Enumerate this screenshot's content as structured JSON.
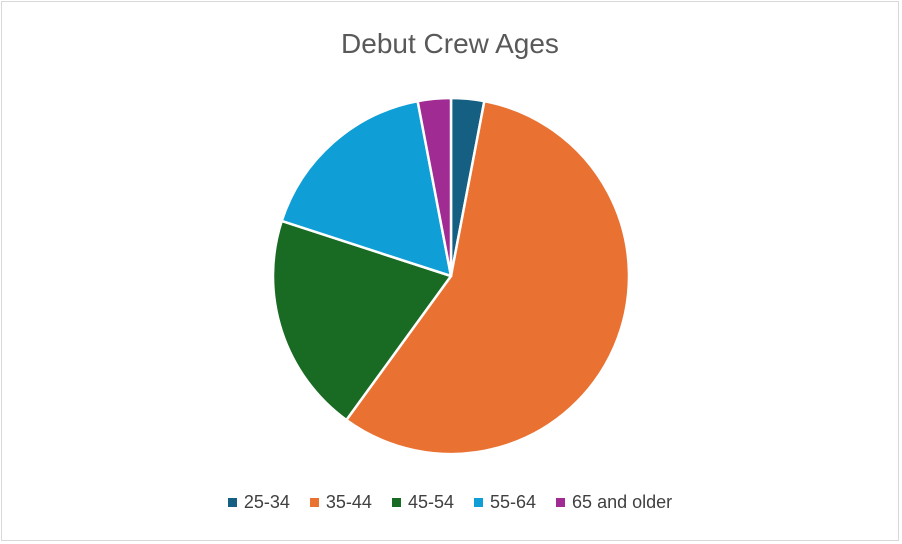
{
  "chart_data": {
    "type": "pie",
    "title": "Debut Crew Ages",
    "categories": [
      "25-34",
      "35-44",
      "45-54",
      "55-64",
      "65 and older"
    ],
    "values": [
      3,
      57,
      20,
      17,
      3
    ],
    "colors": [
      "#156082",
      "#E97132",
      "#196B24",
      "#0F9ED5",
      "#A02B93"
    ],
    "legend_position": "bottom",
    "start_angle_deg": 0,
    "direction": "clockwise"
  }
}
